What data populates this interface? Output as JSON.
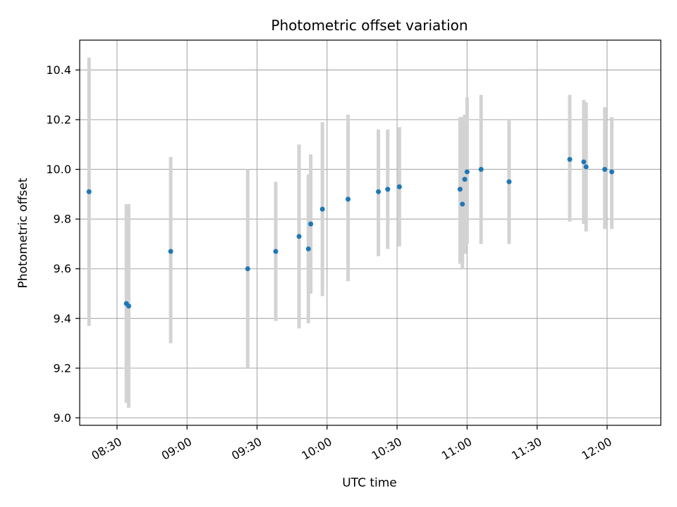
{
  "chart_data": {
    "type": "scatter",
    "title": "Photometric offset variation",
    "xlabel": "UTC time",
    "ylabel": "Photometric offset",
    "xlim": [
      "08:14",
      "12:23"
    ],
    "ylim": [
      8.97,
      10.52
    ],
    "x_ticks": [
      "08:30",
      "09:00",
      "09:30",
      "10:00",
      "10:30",
      "11:00",
      "11:30",
      "12:00"
    ],
    "y_ticks": [
      "9.0",
      "9.2",
      "9.4",
      "9.6",
      "9.8",
      "10.0",
      "10.2",
      "10.4"
    ],
    "grid": true,
    "colors": {
      "point": "#1f77b4",
      "errorbar": "#d3d3d3",
      "grid": "#b0b0b0",
      "axes": "#000000"
    },
    "points": [
      {
        "x": "08:18",
        "y": 9.91,
        "ylow": 9.37,
        "yhigh": 10.45
      },
      {
        "x": "08:34",
        "y": 9.46,
        "ylow": 9.06,
        "yhigh": 9.86
      },
      {
        "x": "08:35",
        "y": 9.45,
        "ylow": 9.04,
        "yhigh": 9.86
      },
      {
        "x": "08:53",
        "y": 9.67,
        "ylow": 9.3,
        "yhigh": 10.05
      },
      {
        "x": "09:26",
        "y": 9.6,
        "ylow": 9.2,
        "yhigh": 10.0
      },
      {
        "x": "09:38",
        "y": 9.67,
        "ylow": 9.39,
        "yhigh": 9.95
      },
      {
        "x": "09:48",
        "y": 9.73,
        "ylow": 9.36,
        "yhigh": 10.1
      },
      {
        "x": "09:52",
        "y": 9.68,
        "ylow": 9.38,
        "yhigh": 9.98
      },
      {
        "x": "09:53",
        "y": 9.78,
        "ylow": 9.5,
        "yhigh": 10.06
      },
      {
        "x": "09:58",
        "y": 9.84,
        "ylow": 9.49,
        "yhigh": 10.19
      },
      {
        "x": "10:09",
        "y": 9.88,
        "ylow": 9.55,
        "yhigh": 10.22
      },
      {
        "x": "10:22",
        "y": 9.91,
        "ylow": 9.65,
        "yhigh": 10.16
      },
      {
        "x": "10:26",
        "y": 9.92,
        "ylow": 9.68,
        "yhigh": 10.16
      },
      {
        "x": "10:31",
        "y": 9.93,
        "ylow": 9.69,
        "yhigh": 10.17
      },
      {
        "x": "10:57",
        "y": 9.92,
        "ylow": 9.62,
        "yhigh": 10.21
      },
      {
        "x": "10:58",
        "y": 9.86,
        "ylow": 9.6,
        "yhigh": 10.21
      },
      {
        "x": "10:59",
        "y": 9.96,
        "ylow": 9.66,
        "yhigh": 10.22
      },
      {
        "x": "11:00",
        "y": 9.99,
        "ylow": 9.7,
        "yhigh": 10.29
      },
      {
        "x": "11:06",
        "y": 10.0,
        "ylow": 9.7,
        "yhigh": 10.3
      },
      {
        "x": "11:18",
        "y": 9.95,
        "ylow": 9.7,
        "yhigh": 10.2
      },
      {
        "x": "11:44",
        "y": 10.04,
        "ylow": 9.79,
        "yhigh": 10.3
      },
      {
        "x": "11:50",
        "y": 10.03,
        "ylow": 9.78,
        "yhigh": 10.28
      },
      {
        "x": "11:51",
        "y": 10.01,
        "ylow": 9.75,
        "yhigh": 10.27
      },
      {
        "x": "11:59",
        "y": 10.0,
        "ylow": 9.76,
        "yhigh": 10.25
      },
      {
        "x": "12:02",
        "y": 9.99,
        "ylow": 9.76,
        "yhigh": 10.21
      }
    ]
  }
}
